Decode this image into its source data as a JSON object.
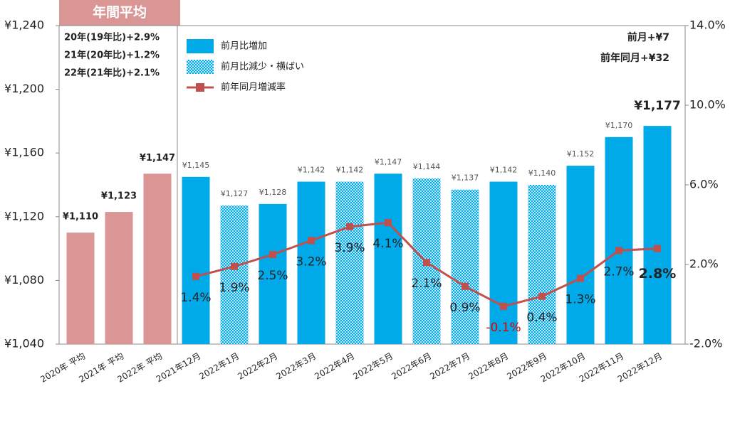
{
  "chart_data": {
    "type": "bar",
    "title": "年間平均",
    "annotations": [
      "20年(19年比)+2.9%",
      "21年(20年比)+1.2%",
      "22年(21年比)+2.1%",
      "前月+¥7",
      "前年同月+¥32"
    ],
    "categories": [
      "2020年 平均",
      "2021年 平均",
      "2022年 平均",
      "2021年12月",
      "2022年1月",
      "2022年2月",
      "2022年3月",
      "2022年4月",
      "2022年5月",
      "2022年6月",
      "2022年7月",
      "2022年8月",
      "2022年9月",
      "2022年10月",
      "2022年11月",
      "2022年12月"
    ],
    "series": [
      {
        "type": "bar",
        "color": "#d99694",
        "values": [
          1110,
          1123,
          1147,
          null,
          null,
          null,
          null,
          null,
          null,
          null,
          null,
          null,
          null,
          null,
          null,
          null
        ],
        "value_labels": [
          "¥1,110",
          "¥1,123",
          "¥1,147",
          null,
          null,
          null,
          null,
          null,
          null,
          null,
          null,
          null,
          null,
          null,
          null,
          null
        ]
      },
      {
        "type": "bar",
        "name": "前月比増加",
        "color": "#00a9e8",
        "values": [
          null,
          null,
          null,
          1145,
          null,
          1128,
          1142,
          null,
          1147,
          null,
          null,
          1142,
          null,
          1152,
          1170,
          1177
        ],
        "value_labels": [
          null,
          null,
          null,
          "¥1,145",
          null,
          "¥1,128",
          "¥1,142",
          null,
          "¥1,147",
          null,
          null,
          "¥1,142",
          null,
          "¥1,152",
          "¥1,170",
          "¥1,177"
        ]
      },
      {
        "type": "bar",
        "name": "前月比減少・横ばい",
        "color": "#00a9e8",
        "pattern": "hatched",
        "values": [
          null,
          null,
          null,
          null,
          1127,
          null,
          null,
          1142,
          null,
          1144,
          1137,
          null,
          1140,
          null,
          null,
          null
        ],
        "value_labels": [
          null,
          null,
          null,
          null,
          "¥1,127",
          null,
          null,
          "¥1,142",
          null,
          "¥1,144",
          "¥1,137",
          null,
          "¥1,140",
          null,
          null,
          null
        ]
      },
      {
        "type": "line",
        "name": "前年同月増減率",
        "color": "#c0504d",
        "axis": "y2",
        "values": [
          null,
          null,
          null,
          1.4,
          1.9,
          2.5,
          3.2,
          3.9,
          4.1,
          2.1,
          0.9,
          -0.1,
          0.4,
          1.3,
          2.7,
          2.8
        ],
        "value_labels": [
          null,
          null,
          null,
          "1.4%",
          "1.9%",
          "2.5%",
          "3.2%",
          "3.9%",
          "4.1%",
          "2.1%",
          "0.9%",
          "-0.1%",
          "0.4%",
          "1.3%",
          "2.7%",
          "2.8%"
        ]
      }
    ],
    "ylim": [
      1040,
      1240
    ],
    "yticks": [
      {
        "value": 1040,
        "label": "¥1,040"
      },
      {
        "value": 1080,
        "label": "¥1,080"
      },
      {
        "value": 1120,
        "label": "¥1,120"
      },
      {
        "value": 1160,
        "label": "¥1,160"
      },
      {
        "value": 1200,
        "label": "¥1,200"
      },
      {
        "value": 1240,
        "label": "¥1,240"
      }
    ],
    "y2lim": [
      -2,
      14
    ],
    "y2ticks": [
      {
        "value": -2,
        "label": "-2.0%"
      },
      {
        "value": 2,
        "label": "2.0%"
      },
      {
        "value": 6,
        "label": "6.0%"
      },
      {
        "value": 10,
        "label": "10.0%"
      },
      {
        "value": 14,
        "label": "14.0%"
      }
    ],
    "grid": false
  }
}
